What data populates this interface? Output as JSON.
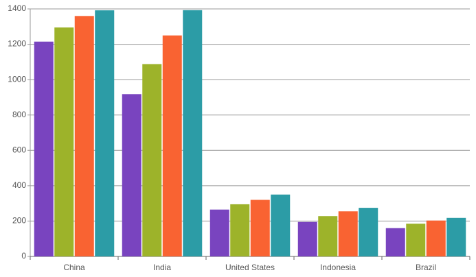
{
  "chart_data": {
    "type": "bar",
    "categories": [
      "China",
      "India",
      "United States",
      "Indonesia",
      "Brazil"
    ],
    "series": [
      {
        "color": "#7944bf",
        "values": [
          1215,
          918,
          265,
          195,
          160
        ]
      },
      {
        "color": "#9db32a",
        "values": [
          1295,
          1088,
          295,
          228,
          185
        ]
      },
      {
        "color": "#f96332",
        "values": [
          1360,
          1250,
          320,
          255,
          203
        ]
      },
      {
        "color": "#2c9ca6",
        "values": [
          1392,
          1393,
          350,
          275,
          218
        ]
      }
    ],
    "ylim": [
      0,
      1400
    ],
    "yticks": [
      0,
      200,
      400,
      600,
      800,
      1000,
      1200,
      1400
    ],
    "grid": true
  }
}
